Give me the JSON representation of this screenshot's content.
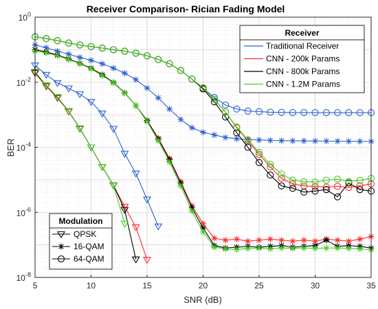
{
  "chart_data": {
    "type": "line",
    "title": "Receiver Comparison- Rician Fading Model",
    "xlabel": "SNR (dB)",
    "ylabel": "BER",
    "xlim": [
      5,
      35
    ],
    "ylim": [
      1e-08,
      1
    ],
    "yscale": "log",
    "grid": true,
    "minor_grid": true,
    "x_ticks": [
      "5",
      "10",
      "15",
      "20",
      "25",
      "30",
      "35"
    ],
    "y_ticks": [
      {
        "base": "10",
        "exp": "0",
        "value": 1
      },
      {
        "base": "10",
        "exp": "-2",
        "value": 0.01
      },
      {
        "base": "10",
        "exp": "-4",
        "value": 0.0001
      },
      {
        "base": "10",
        "exp": "-6",
        "value": 1e-06
      },
      {
        "base": "10",
        "exp": "-8",
        "value": 1e-08
      }
    ],
    "legend_receiver": {
      "title": "Receiver",
      "placement": "top-right",
      "entries": [
        {
          "label": "Traditional Receiver",
          "color": "#2a5fd1"
        },
        {
          "label": "CNN - 200k Params",
          "color": "#ff2a2a"
        },
        {
          "label": "CNN - 800k Params",
          "color": "#000000"
        },
        {
          "label": "CNN - 1.2M Params",
          "color": "#44cc22"
        }
      ]
    },
    "legend_modulation": {
      "title": "Modulation",
      "placement": "bottom-left",
      "entries": [
        {
          "label": "QPSK",
          "marker": "triangle-down"
        },
        {
          "label": "16-QAM",
          "marker": "asterisk"
        },
        {
          "label": "64-QAM",
          "marker": "circle"
        }
      ]
    },
    "series": [
      {
        "receiver": "Traditional Receiver",
        "modulation": "QPSK",
        "color": "#2a5fd1",
        "marker": "triangle-down",
        "x": [
          5,
          6,
          7,
          8,
          9,
          10,
          11,
          12,
          13,
          14,
          15,
          16
        ],
        "y": [
          0.033,
          0.017,
          0.0095,
          0.0065,
          0.0043,
          0.0025,
          0.0011,
          0.00037,
          6.38e-05,
          1.57e-05,
          2.5e-06,
          3.7e-07
        ]
      },
      {
        "receiver": "Traditional Receiver",
        "modulation": "16-QAM",
        "color": "#2a5fd1",
        "marker": "asterisk",
        "x": [
          5,
          6,
          7,
          8,
          9,
          10,
          11,
          12,
          13,
          14,
          15,
          16,
          17,
          18,
          19,
          20,
          21,
          22,
          23,
          24,
          25,
          26,
          27,
          28,
          29,
          30,
          31,
          32,
          33,
          34,
          35
        ],
        "y": [
          0.14,
          0.115,
          0.09,
          0.073,
          0.058,
          0.047,
          0.037,
          0.027,
          0.019,
          0.012,
          0.0066,
          0.0033,
          0.0015,
          0.00072,
          0.0004,
          0.00029,
          0.00024,
          0.0002,
          0.000183,
          0.000173,
          0.000168,
          0.000163,
          0.00016,
          0.000158,
          0.000157,
          0.000156,
          0.000155,
          0.000154,
          0.000153,
          0.000152,
          0.000151
        ]
      },
      {
        "receiver": "Traditional Receiver",
        "modulation": "64-QAM",
        "color": "#2a5fd1",
        "marker": "circle",
        "x": [
          5,
          6,
          7,
          8,
          9,
          10,
          11,
          12,
          13,
          14,
          15,
          16,
          17,
          18,
          19,
          20,
          21,
          22,
          23,
          24,
          25,
          26,
          27,
          28,
          29,
          30,
          31,
          32,
          33,
          34,
          35
        ],
        "y": [
          0.25,
          0.22,
          0.19,
          0.16,
          0.14,
          0.125,
          0.112,
          0.1,
          0.09,
          0.078,
          0.065,
          0.05,
          0.037,
          0.023,
          0.0125,
          0.0066,
          0.0034,
          0.002,
          0.0015,
          0.0013,
          0.00125,
          0.0012,
          0.00118,
          0.00117,
          0.00117,
          0.00116,
          0.00116,
          0.00116,
          0.00116,
          0.00116,
          0.00116
        ]
      },
      {
        "receiver": "CNN - 200k Params",
        "modulation": "QPSK",
        "color": "#ff2a2a",
        "marker": "triangle-down",
        "x": [
          5,
          6,
          7,
          8,
          9,
          10,
          11,
          12,
          13,
          14,
          15
        ],
        "y": [
          0.019,
          0.0075,
          0.0033,
          0.00125,
          0.00037,
          0.0001,
          2.5e-05,
          6.7e-06,
          1.5e-06,
          3.5e-07,
          3.5e-08
        ]
      },
      {
        "receiver": "CNN - 200k Params",
        "modulation": "16-QAM",
        "color": "#ff2a2a",
        "marker": "asterisk",
        "x": [
          5,
          6,
          7,
          8,
          9,
          10,
          11,
          12,
          13,
          14,
          15,
          16,
          17,
          18,
          19,
          20,
          21,
          22,
          23,
          24,
          25,
          26,
          27,
          28,
          29,
          30,
          31,
          32,
          33,
          34,
          35
        ],
        "y": [
          0.1,
          0.085,
          0.068,
          0.052,
          0.038,
          0.027,
          0.017,
          0.0098,
          0.0047,
          0.0019,
          0.00067,
          0.00019,
          4.5e-05,
          8.8e-06,
          1.6e-06,
          4.5e-07,
          1.6e-07,
          1.4e-07,
          1.5e-07,
          1.3e-07,
          1.4e-07,
          1.5e-07,
          1.4e-07,
          1.3e-07,
          1.4e-07,
          1.3e-07,
          1.5e-07,
          1.4e-07,
          1.3e-07,
          1.5e-07,
          1.8e-07
        ]
      },
      {
        "receiver": "CNN - 200k Params",
        "modulation": "64-QAM",
        "color": "#ff2a2a",
        "marker": "circle",
        "x": [
          5,
          6,
          7,
          8,
          9,
          10,
          11,
          12,
          13,
          14,
          15,
          16,
          17,
          18,
          19,
          20,
          21,
          22,
          23,
          24,
          25,
          26,
          27,
          28,
          29,
          30,
          31,
          32,
          33,
          34,
          35
        ],
        "y": [
          0.25,
          0.22,
          0.19,
          0.16,
          0.14,
          0.125,
          0.112,
          0.1,
          0.09,
          0.078,
          0.065,
          0.05,
          0.037,
          0.023,
          0.0125,
          0.0065,
          0.003,
          0.0012,
          0.0004,
          0.00016,
          6e-05,
          2.5e-05,
          1.1e-05,
          7.5e-06,
          6.5e-06,
          6.2e-06,
          6e-06,
          6.3e-06,
          5.8e-06,
          6.6e-06,
          7.5e-06
        ]
      },
      {
        "receiver": "CNN - 800k Params",
        "modulation": "QPSK",
        "color": "#000000",
        "marker": "triangle-down",
        "x": [
          5,
          6,
          7,
          8,
          9,
          10,
          11,
          12,
          13,
          14
        ],
        "y": [
          0.02,
          0.0078,
          0.0034,
          0.0013,
          0.00038,
          0.0001,
          2.5e-05,
          6.8e-06,
          1.2e-06,
          3.6e-08
        ]
      },
      {
        "receiver": "CNN - 800k Params",
        "modulation": "16-QAM",
        "color": "#000000",
        "marker": "asterisk",
        "x": [
          5,
          6,
          7,
          8,
          9,
          10,
          11,
          12,
          13,
          14,
          15,
          16,
          17,
          18,
          19,
          20,
          21,
          22,
          23,
          24,
          25,
          26,
          27,
          28,
          29,
          30,
          31,
          32,
          33,
          34,
          35
        ],
        "y": [
          0.1,
          0.085,
          0.068,
          0.052,
          0.038,
          0.027,
          0.017,
          0.0098,
          0.0047,
          0.0019,
          0.00066,
          0.00018,
          4.2e-05,
          8e-06,
          1.4e-06,
          3.3e-07,
          9.5e-08,
          8e-08,
          8.5e-08,
          9e-08,
          8.5e-08,
          9e-08,
          9.5e-08,
          8.5e-08,
          9e-08,
          9.5e-08,
          1.4e-07,
          9e-08,
          9.5e-08,
          9e-08,
          8e-08
        ]
      },
      {
        "receiver": "CNN - 800k Params",
        "modulation": "64-QAM",
        "color": "#000000",
        "marker": "circle",
        "x": [
          5,
          6,
          7,
          8,
          9,
          10,
          11,
          12,
          13,
          14,
          15,
          16,
          17,
          18,
          19,
          20,
          21,
          22,
          23,
          24,
          25,
          26,
          27,
          28,
          29,
          30,
          31,
          32,
          33,
          34,
          35
        ],
        "y": [
          0.25,
          0.22,
          0.19,
          0.16,
          0.14,
          0.125,
          0.112,
          0.1,
          0.09,
          0.078,
          0.065,
          0.05,
          0.037,
          0.023,
          0.0125,
          0.0062,
          0.0025,
          0.00085,
          0.00028,
          0.0001,
          3.4e-05,
          1.4e-05,
          6.5e-06,
          5.5e-06,
          4.2e-06,
          4.5e-06,
          5e-06,
          3e-06,
          8e-06,
          5e-06,
          4.5e-06
        ]
      },
      {
        "receiver": "CNN - 1.2M Params",
        "modulation": "QPSK",
        "color": "#44cc22",
        "marker": "triangle-down",
        "x": [
          5,
          6,
          7,
          8,
          9,
          10,
          11,
          12,
          13
        ],
        "y": [
          0.021,
          0.008,
          0.0035,
          0.0013,
          0.00037,
          0.0001,
          2.5e-05,
          6.7e-06,
          4.5e-07
        ]
      },
      {
        "receiver": "CNN - 1.2M Params",
        "modulation": "16-QAM",
        "color": "#44cc22",
        "marker": "asterisk",
        "x": [
          5,
          6,
          7,
          8,
          9,
          10,
          11,
          12,
          13,
          14,
          15,
          16,
          17,
          18,
          19,
          20,
          21,
          22,
          23,
          24,
          25,
          26,
          27,
          28,
          29,
          30,
          31,
          32,
          33,
          34,
          35
        ],
        "y": [
          0.09,
          0.08,
          0.065,
          0.05,
          0.037,
          0.026,
          0.016,
          0.0095,
          0.0046,
          0.0019,
          0.00062,
          0.00016,
          3.5e-05,
          6.5e-06,
          1.1e-06,
          2.5e-07,
          8.5e-08,
          7.5e-08,
          7.2e-08,
          7.8e-08,
          8e-08,
          7.5e-08,
          8e-08,
          7.8e-08,
          8e-08,
          7.8e-08,
          8e-08,
          8e-08,
          7.8e-08,
          7.5e-08,
          7e-08
        ]
      },
      {
        "receiver": "CNN - 1.2M Params",
        "modulation": "64-QAM",
        "color": "#44cc22",
        "marker": "circle",
        "x": [
          5,
          6,
          7,
          8,
          9,
          10,
          11,
          12,
          13,
          14,
          15,
          16,
          17,
          18,
          19,
          20,
          21,
          22,
          23,
          24,
          25,
          26,
          27,
          28,
          29,
          30,
          31,
          32,
          33,
          34,
          35
        ],
        "y": [
          0.25,
          0.22,
          0.19,
          0.16,
          0.14,
          0.125,
          0.112,
          0.1,
          0.09,
          0.078,
          0.065,
          0.05,
          0.037,
          0.023,
          0.0125,
          0.0068,
          0.003,
          0.0012,
          0.00042,
          0.00017,
          7e-05,
          3e-05,
          1.5e-05,
          9.8e-06,
          8.8e-06,
          8.5e-06,
          9.7e-06,
          1.05e-05,
          9e-06,
          9.6e-06,
          1.1e-05
        ]
      }
    ]
  }
}
